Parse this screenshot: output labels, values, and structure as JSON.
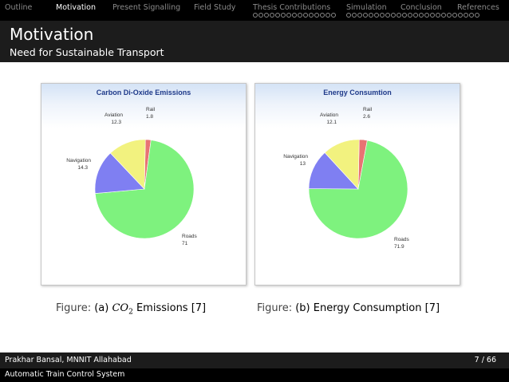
{
  "nav": {
    "items": [
      {
        "label": "Outline",
        "active": false,
        "dots": 0
      },
      {
        "label": "Motivation",
        "active": true,
        "dots": 0
      },
      {
        "label": "Present Signalling",
        "active": false,
        "dots": 0
      },
      {
        "label": "Field Study",
        "active": false,
        "dots": 0
      },
      {
        "label": "Thesis Contributions",
        "active": false,
        "dots": 15
      },
      {
        "label": "Simulation",
        "active": false,
        "dots": 0
      },
      {
        "label": "Conclusion",
        "active": false,
        "dots": 0
      },
      {
        "label": "References",
        "active": false,
        "dots": 0
      }
    ],
    "extra_dots": 24
  },
  "frame": {
    "title": "Motivation",
    "subtitle": "Need for Sustainable Transport"
  },
  "chart_data": [
    {
      "type": "pie",
      "title": "Carbon Di-Oxide Emissions",
      "slices": [
        {
          "label": "Rail",
          "value": 1.8,
          "color": "#e87373"
        },
        {
          "label": "Roads",
          "value": 71,
          "color": "#7ef27e"
        },
        {
          "label": "Navigation",
          "value": 14.3,
          "color": "#7f7ff2"
        },
        {
          "label": "Aviation",
          "value": 12.3,
          "color": "#f2f27f"
        }
      ]
    },
    {
      "type": "pie",
      "title": "Energy Consumtion",
      "slices": [
        {
          "label": "Rail",
          "value": 2.6,
          "color": "#e87373"
        },
        {
          "label": "Roads",
          "value": 71.9,
          "color": "#7ef27e"
        },
        {
          "label": "Navigation",
          "value": 13,
          "color": "#7f7ff2"
        },
        {
          "label": "Aviation",
          "value": 12.1,
          "color": "#f2f27f"
        }
      ]
    }
  ],
  "captions": {
    "a": {
      "figure": "Figure:",
      "prefix": "(a)",
      "math_main": "CO",
      "math_sub": "2",
      "suffix": "Emissions [7]"
    },
    "b": {
      "figure": "Figure:",
      "text": "(b) Energy Consumption [7]"
    }
  },
  "footer": {
    "author": "Prakhar Bansal, MNNIT Allahabad",
    "page": "7 / 66",
    "system": "Automatic Train Control System"
  }
}
